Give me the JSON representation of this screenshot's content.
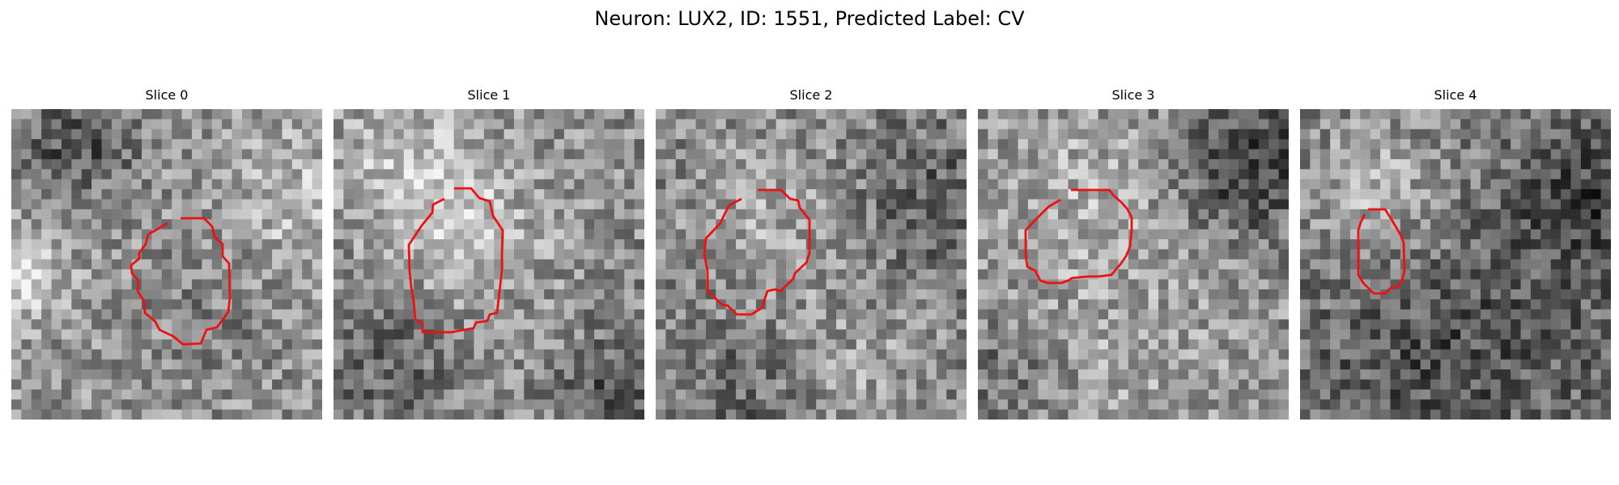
{
  "figure": {
    "title": "Neuron: LUX2, ID: 1551, Predicted Label: CV",
    "outline_color": "#ee1111"
  },
  "slices": [
    {
      "title": "Slice 0"
    },
    {
      "title": "Slice 1"
    },
    {
      "title": "Slice 2"
    },
    {
      "title": "Slice 3"
    },
    {
      "title": "Slice 4"
    }
  ]
}
